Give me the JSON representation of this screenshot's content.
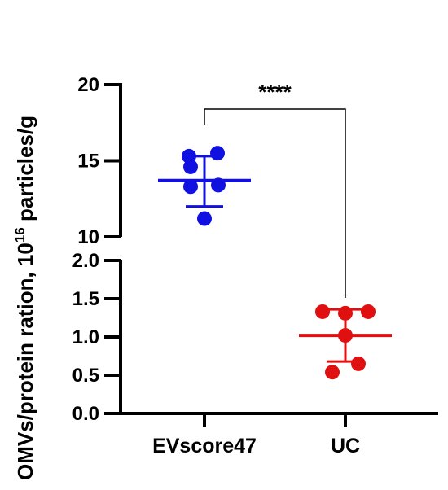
{
  "chart_data": {
    "type": "scatter",
    "title": "",
    "ylabel_main": "OMVs/protein ration, 10",
    "ylabel_sup": "16",
    "ylabel_tail": " particles/g",
    "categories": [
      "EVscore47",
      "UC"
    ],
    "axis_break": true,
    "segments": [
      {
        "range": [
          10,
          20
        ],
        "ticks": [
          "10",
          "15",
          "20"
        ],
        "tick_values": [
          10,
          15,
          20
        ]
      },
      {
        "range": [
          0,
          2
        ],
        "ticks": [
          "0.0",
          "0.5",
          "1.0",
          "1.5",
          "2.0"
        ],
        "tick_values": [
          0,
          0.5,
          1.0,
          1.5,
          2.0
        ]
      }
    ],
    "series": [
      {
        "category": "EVscore47",
        "color": "#1010e0",
        "points": [
          15.3,
          15.5,
          14.6,
          13.4,
          13.3,
          11.2
        ],
        "mean": 13.7,
        "sd_low": 12.0,
        "sd_high": 15.3
      },
      {
        "category": "UC",
        "color": "#e01010",
        "points": [
          1.33,
          1.33,
          1.31,
          1.02,
          0.65,
          0.54
        ],
        "mean": 1.02,
        "sd_low": 0.68,
        "sd_high": 1.36
      }
    ],
    "significance": "****",
    "grid": false,
    "legend": "none"
  }
}
